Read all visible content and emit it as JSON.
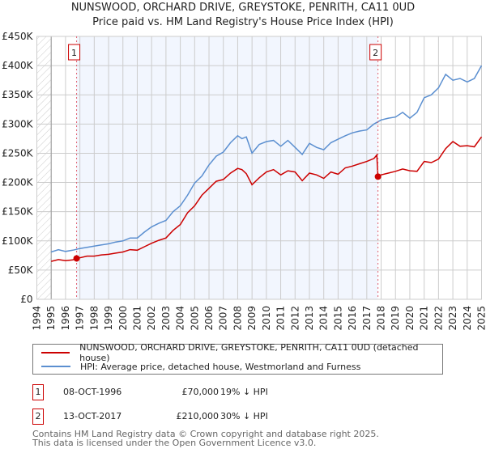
{
  "chart_data": {
    "type": "line",
    "title": "NUNSWOOD, ORCHARD DRIVE, GREYSTOKE, PENRITH, CA11 0UD",
    "subtitle": "Price paid vs. HM Land Registry's House Price Index (HPI)",
    "xlim": [
      1994,
      2025
    ],
    "ylim": [
      0,
      450000
    ],
    "x_ticks": [
      "1994",
      "1995",
      "1996",
      "1997",
      "1998",
      "1999",
      "2000",
      "2001",
      "2002",
      "2003",
      "2004",
      "2005",
      "2006",
      "2007",
      "2008",
      "2009",
      "2010",
      "2011",
      "2012",
      "2013",
      "2014",
      "2015",
      "2016",
      "2017",
      "2018",
      "2019",
      "2020",
      "2021",
      "2022",
      "2023",
      "2024",
      "2025"
    ],
    "y_ticks": [
      {
        "v": 0,
        "label": "£0"
      },
      {
        "v": 50000,
        "label": "£50K"
      },
      {
        "v": 100000,
        "label": "£100K"
      },
      {
        "v": 150000,
        "label": "£150K"
      },
      {
        "v": 200000,
        "label": "£200K"
      },
      {
        "v": 250000,
        "label": "£250K"
      },
      {
        "v": 300000,
        "label": "£300K"
      },
      {
        "v": 350000,
        "label": "£350K"
      },
      {
        "v": 400000,
        "label": "£400K"
      },
      {
        "v": 450000,
        "label": "£450K"
      }
    ],
    "series": [
      {
        "name": "NUNSWOOD, ORCHARD DRIVE, GREYSTOKE, PENRITH, CA11 0UD (detached house)",
        "color": "#cc0000",
        "x": [
          1995,
          1995.5,
          1996,
          1996.5,
          1996.77,
          1997,
          1997.5,
          1998,
          1998.5,
          1999,
          1999.5,
          2000,
          2000.5,
          2001,
          2001.5,
          2002,
          2002.5,
          2003,
          2003.5,
          2004,
          2004.5,
          2005,
          2005.5,
          2006,
          2006.5,
          2007,
          2007.5,
          2008,
          2008.3,
          2008.6,
          2009,
          2009.5,
          2010,
          2010.5,
          2011,
          2011.5,
          2012,
          2012.5,
          2013,
          2013.5,
          2014,
          2014.5,
          2015,
          2015.5,
          2016,
          2016.5,
          2017,
          2017.5,
          2017.7,
          2017.78,
          2018,
          2018.5,
          2019,
          2019.5,
          2020,
          2020.5,
          2021,
          2021.5,
          2022,
          2022.5,
          2023,
          2023.5,
          2024,
          2024.5,
          2025
        ],
        "y": [
          65000,
          68000,
          66000,
          67500,
          70000,
          71000,
          74000,
          74000,
          76000,
          77000,
          79000,
          81000,
          85000,
          84000,
          90000,
          96000,
          101000,
          105000,
          118000,
          128000,
          148000,
          160000,
          178000,
          190000,
          202000,
          205000,
          216000,
          224000,
          222000,
          215000,
          196000,
          208000,
          218000,
          222000,
          213000,
          220000,
          218000,
          203000,
          216000,
          213000,
          207000,
          218000,
          214000,
          225000,
          228000,
          232000,
          236000,
          241000,
          247000,
          210000,
          213000,
          216000,
          219000,
          223000,
          220000,
          219000,
          236000,
          234000,
          240000,
          258000,
          270000,
          262000,
          263000,
          261000,
          278000
        ]
      },
      {
        "name": "HPI: Average price, detached house, Westmorland and Furness",
        "color": "#5b8fd0",
        "x": [
          1995,
          1995.5,
          1996,
          1996.5,
          1997,
          1997.5,
          1998,
          1998.5,
          1999,
          1999.5,
          2000,
          2000.5,
          2001,
          2001.5,
          2002,
          2002.5,
          2003,
          2003.5,
          2004,
          2004.5,
          2005,
          2005.5,
          2006,
          2006.5,
          2007,
          2007.5,
          2008,
          2008.3,
          2008.6,
          2009,
          2009.5,
          2010,
          2010.5,
          2011,
          2011.5,
          2012,
          2012.5,
          2013,
          2013.5,
          2014,
          2014.5,
          2015,
          2015.5,
          2016,
          2016.5,
          2017,
          2017.5,
          2018,
          2018.5,
          2019,
          2019.5,
          2020,
          2020.5,
          2021,
          2021.5,
          2022,
          2022.5,
          2023,
          2023.5,
          2024,
          2024.5,
          2025
        ],
        "y": [
          81000,
          85000,
          82000,
          84000,
          87000,
          89000,
          91000,
          93000,
          95000,
          98000,
          100000,
          105000,
          105000,
          115000,
          124000,
          130000,
          135000,
          150000,
          160000,
          178000,
          199000,
          211000,
          230000,
          245000,
          252000,
          268000,
          280000,
          275000,
          278000,
          250000,
          265000,
          270000,
          272000,
          262000,
          272000,
          260000,
          248000,
          267000,
          260000,
          256000,
          268000,
          274000,
          280000,
          285000,
          288000,
          290000,
          300000,
          307000,
          310000,
          312000,
          320000,
          310000,
          320000,
          345000,
          350000,
          362000,
          385000,
          375000,
          378000,
          372000,
          378000,
          400000
        ]
      }
    ],
    "annotations": [
      {
        "label": "1",
        "x": 1996.77,
        "y": 70000
      },
      {
        "label": "2",
        "x": 2017.78,
        "y": 210000
      }
    ],
    "shaded_range": [
      1996.77,
      2017.78
    ],
    "grid": true
  },
  "legend": {
    "red": "NUNSWOOD, ORCHARD DRIVE, GREYSTOKE, PENRITH, CA11 0UD (detached house)",
    "blue": "HPI: Average price, detached house, Westmorland and Furness"
  },
  "sales": [
    {
      "num": "1",
      "date": "08-OCT-1996",
      "price": "£70,000",
      "hpi": "19% ↓ HPI"
    },
    {
      "num": "2",
      "date": "13-OCT-2017",
      "price": "£210,000",
      "hpi": "30% ↓ HPI"
    }
  ],
  "footer": {
    "line1": "Contains HM Land Registry data © Crown copyright and database right 2025.",
    "line2": "This data is licensed under the Open Government Licence v3.0."
  }
}
